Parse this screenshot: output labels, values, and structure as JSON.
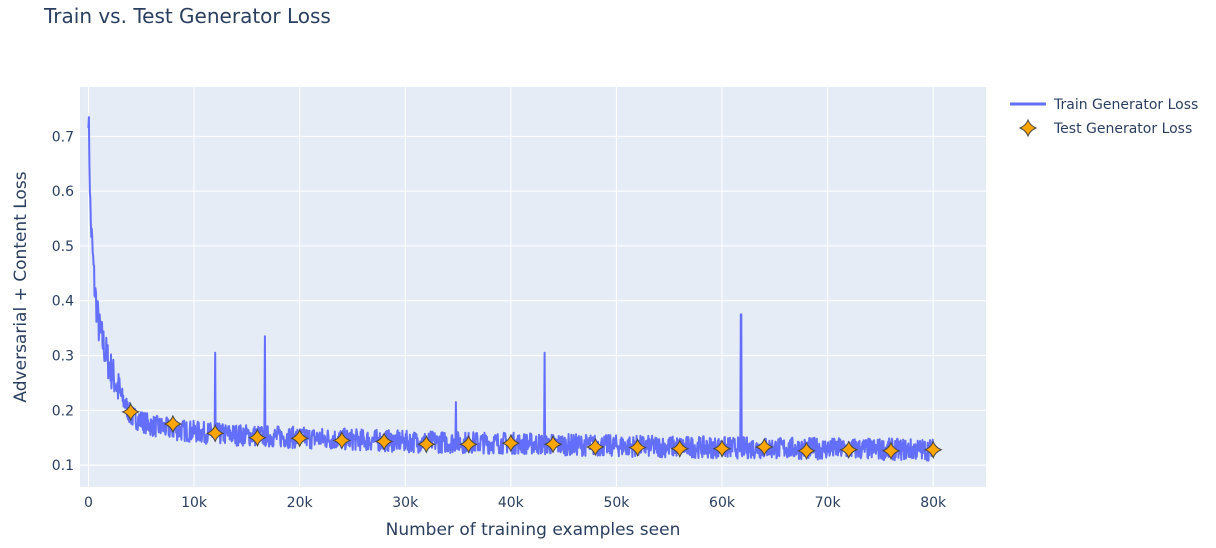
{
  "chart_data": {
    "type": "line",
    "title": "Train vs. Test Generator Loss",
    "xlabel": "Number of training examples seen",
    "ylabel": "Adversarial + Content Loss",
    "xlim": [
      -800,
      85000
    ],
    "ylim": [
      0.06,
      0.79
    ],
    "x_ticks": [
      0,
      10000,
      20000,
      30000,
      40000,
      50000,
      60000,
      70000,
      80000
    ],
    "x_tick_labels": [
      "0",
      "10k",
      "20k",
      "30k",
      "40k",
      "50k",
      "60k",
      "70k",
      "80k"
    ],
    "y_ticks": [
      0.1,
      0.2,
      0.3,
      0.4,
      0.5,
      0.6,
      0.7
    ],
    "y_tick_labels": [
      "0.1",
      "0.2",
      "0.3",
      "0.4",
      "0.5",
      "0.6",
      "0.7"
    ],
    "grid": true,
    "legend_position": "top-right",
    "colors": {
      "train": "#636efa",
      "test_fill": "#ffa500",
      "test_outline": "#444444",
      "plot_bg": "#e5ecf6",
      "grid": "#ffffff"
    },
    "series": [
      {
        "name": "Train Generator Loss",
        "mode": "line",
        "x_start": 0,
        "x_end": 80000,
        "trend": [
          [
            0,
            0.75
          ],
          [
            200,
            0.55
          ],
          [
            600,
            0.42
          ],
          [
            1000,
            0.35
          ],
          [
            2000,
            0.28
          ],
          [
            3000,
            0.23
          ],
          [
            4000,
            0.19
          ],
          [
            6000,
            0.172
          ],
          [
            8000,
            0.165
          ],
          [
            12000,
            0.157
          ],
          [
            20000,
            0.15
          ],
          [
            30000,
            0.143
          ],
          [
            40000,
            0.14
          ],
          [
            50000,
            0.135
          ],
          [
            60000,
            0.132
          ],
          [
            70000,
            0.13
          ],
          [
            80000,
            0.128
          ]
        ],
        "spikes": [
          [
            12000,
            0.305
          ],
          [
            16700,
            0.335
          ],
          [
            34800,
            0.215
          ],
          [
            43200,
            0.305
          ],
          [
            61800,
            0.375
          ]
        ]
      },
      {
        "name": "Test Generator Loss",
        "mode": "markers",
        "marker": "star-diamond",
        "x": [
          4000,
          8000,
          12000,
          16000,
          20000,
          24000,
          28000,
          32000,
          36000,
          40000,
          44000,
          48000,
          52000,
          56000,
          60000,
          64000,
          68000,
          72000,
          76000,
          80000
        ],
        "y": [
          0.197,
          0.175,
          0.158,
          0.15,
          0.149,
          0.145,
          0.143,
          0.138,
          0.138,
          0.14,
          0.138,
          0.133,
          0.132,
          0.13,
          0.13,
          0.133,
          0.126,
          0.128,
          0.126,
          0.128
        ]
      }
    ]
  }
}
